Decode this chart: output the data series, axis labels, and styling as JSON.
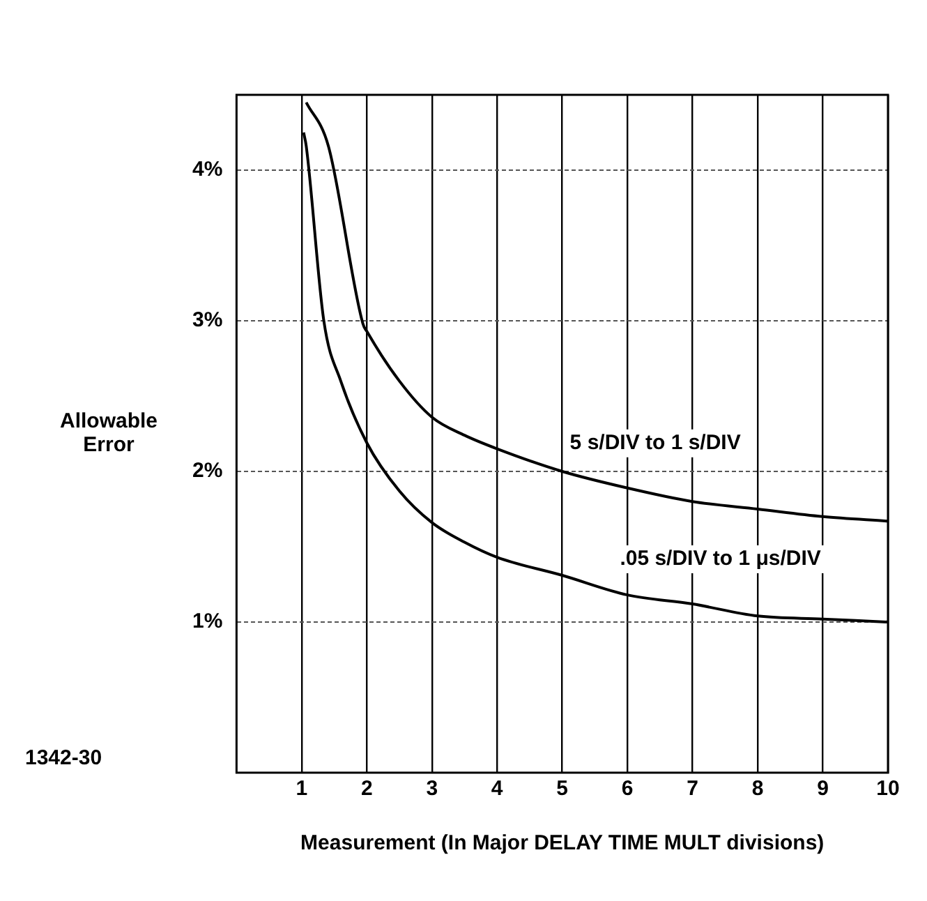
{
  "chart_data": {
    "type": "line",
    "xlabel": "Measurement (In Major DELAY TIME MULT divisions)",
    "ylabel": "Allowable Error",
    "xlim": [
      0,
      10
    ],
    "xticks": [
      1,
      2,
      3,
      4,
      5,
      6,
      7,
      8,
      9,
      10
    ],
    "ylim": [
      0,
      4.5
    ],
    "yticks": [
      {
        "value": 1,
        "label": "1%"
      },
      {
        "value": 2,
        "label": "2%"
      },
      {
        "value": 3,
        "label": "3%"
      },
      {
        "value": 4,
        "label": "4%"
      }
    ],
    "grid": true,
    "marker": "none",
    "line_style": "solid",
    "legend": false,
    "series": [
      {
        "name": "5 s/DIV to 1 s/DIV",
        "color": "#000000",
        "x": [
          1.07,
          1.41,
          1.94,
          2,
          2.5,
          3,
          3.5,
          4,
          5,
          6,
          7,
          8,
          9,
          10
        ],
        "values": [
          4.45,
          4.16,
          2.98,
          2.93,
          2.6,
          2.36,
          2.24,
          2.15,
          2.0,
          1.89,
          1.8,
          1.75,
          1.7,
          1.67
        ]
      },
      {
        "name": ".05 s/DIV to 1 μs/DIV",
        "color": "#000000",
        "x": [
          1.03,
          1.07,
          1.34,
          1.6,
          2,
          2.5,
          3,
          3.5,
          4,
          5,
          6,
          7,
          8,
          9,
          10
        ],
        "values": [
          4.25,
          4.16,
          3.0,
          2.6,
          2.19,
          1.87,
          1.66,
          1.53,
          1.43,
          1.31,
          1.18,
          1.12,
          1.04,
          1.02,
          1.0
        ]
      }
    ],
    "annotations": [
      "1342-30"
    ]
  }
}
